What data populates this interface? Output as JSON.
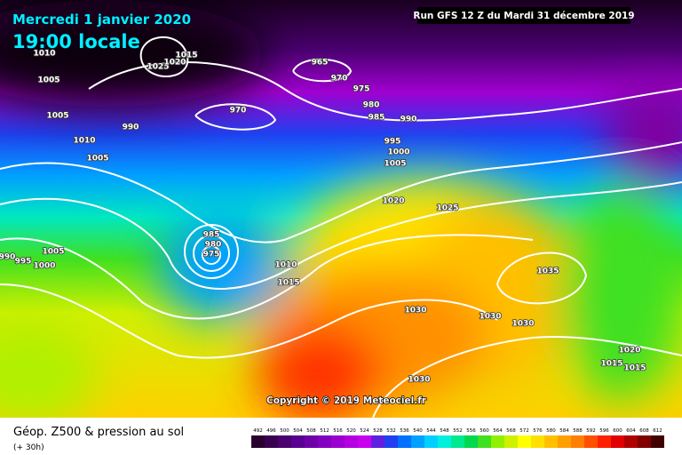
{
  "header": {
    "date": "Mercredi 1 janvier 2020",
    "time": "19:00 locale",
    "run": "Run GFS 12 Z du Mardi 31 décembre 2019"
  },
  "copyright": "Copyright © 2019 Meteociel.fr",
  "footer": {
    "title": "Géop. Z500 & pression au sol",
    "lead": "(+ 30h)"
  },
  "isobar_labels": [
    "1010",
    "1005",
    "1005",
    "1010",
    "1005",
    "1025",
    "1020",
    "1015",
    "990",
    "965",
    "970",
    "975",
    "970",
    "980",
    "985",
    "990",
    "995",
    "1000",
    "1005",
    "1020",
    "1025",
    "985",
    "980",
    "975",
    "1010",
    "1015",
    "990",
    "995",
    "1000",
    "1005",
    "1030",
    "1030",
    "1030",
    "1035",
    "1030",
    "1020",
    "1015",
    "1015"
  ],
  "scale": {
    "labels": [
      "492",
      "496",
      "500",
      "504",
      "508",
      "512",
      "516",
      "520",
      "524",
      "528",
      "532",
      "536",
      "540",
      "544",
      "548",
      "552",
      "556",
      "560",
      "564",
      "568",
      "572",
      "576",
      "580",
      "584",
      "588",
      "592",
      "596",
      "600",
      "604",
      "608",
      "612"
    ],
    "colors": [
      "#2a0030",
      "#3a0050",
      "#4b0070",
      "#5a0090",
      "#6e00a8",
      "#8400c0",
      "#9c00d0",
      "#b400e0",
      "#c800f0",
      "#6020e0",
      "#2040f0",
      "#0070ff",
      "#00a0ff",
      "#00d0ff",
      "#00f0e0",
      "#00e890",
      "#00d850",
      "#40e020",
      "#90f000",
      "#d0f000",
      "#ffff00",
      "#ffe000",
      "#ffc000",
      "#ffa000",
      "#ff8000",
      "#ff5000",
      "#ff2000",
      "#e00000",
      "#b00000",
      "#800000",
      "#400000"
    ]
  }
}
